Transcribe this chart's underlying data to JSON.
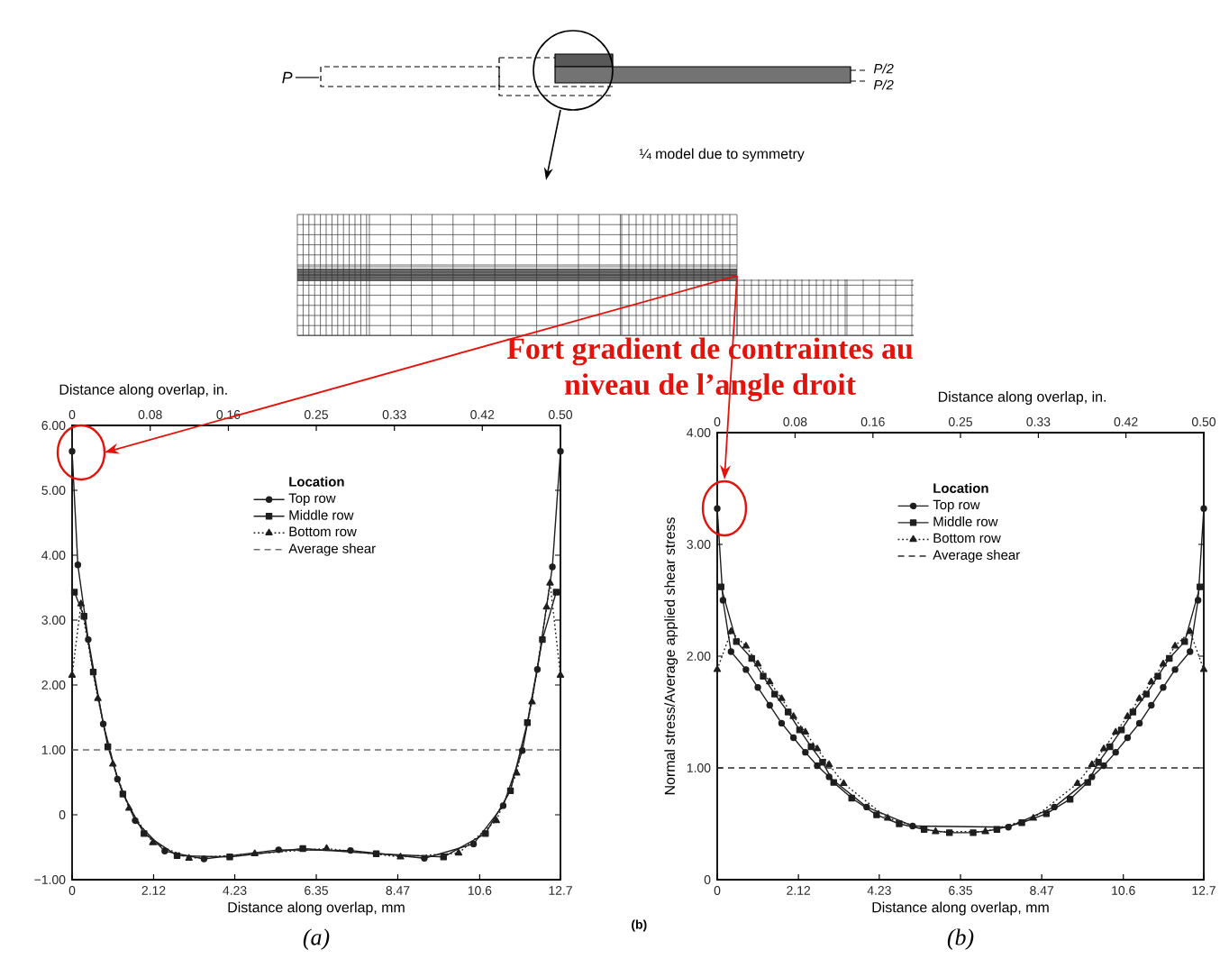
{
  "chart_data": [
    {
      "type": "other",
      "annotations": [
        "P",
        "P/2",
        "P/2",
        "¼ model due to symmetry",
        "Fort gradient de contraintes au niveau de l’angle droit"
      ]
    },
    {
      "type": "line",
      "xlabel": "Distance along overlap, mm",
      "x2label": "Distance along overlap, in.",
      "xlim": [
        0,
        12.7
      ],
      "xticks": [
        0,
        2.12,
        4.23,
        6.35,
        8.47,
        10.6,
        12.7
      ],
      "x2lim": [
        0,
        0.5
      ],
      "x2ticks": [
        0,
        0.08,
        0.16,
        0.25,
        0.33,
        0.42,
        {
          "value": 0.5,
          "label": "0.50"
        }
      ],
      "ylim": [
        -1,
        6
      ],
      "yticks": [
        {
          "value": -1,
          "label": "−1.00"
        },
        0,
        {
          "value": 1,
          "label": "1.00"
        },
        {
          "value": 2,
          "label": "2.00"
        },
        {
          "value": 3,
          "label": "3.00"
        },
        {
          "value": 4,
          "label": "4.00"
        },
        {
          "value": 5,
          "label": "5.00"
        },
        {
          "value": 6,
          "label": "6.00"
        }
      ],
      "legend": "top",
      "legend_title": "Location",
      "series": [
        {
          "name": "Top row",
          "color": "#1e1e1e",
          "marker": "circle",
          "line_style": "solid",
          "x": [
            0,
            0.15,
            0.42,
            0.81,
            1.18,
            1.64,
            2.41,
            3.43,
            5.37,
            7.24,
            9.16,
            10.44,
            11.21,
            11.71,
            12.1,
            12.49,
            12.7
          ],
          "values": [
            5.6,
            3.85,
            2.7,
            1.4,
            0.55,
            -0.09,
            -0.56,
            -0.68,
            -0.54,
            -0.55,
            -0.67,
            -0.45,
            0.14,
            0.99,
            2.24,
            3.82,
            5.6
          ]
        },
        {
          "name": "Middle row",
          "color": "#1e1e1e",
          "marker": "square",
          "line_style": "solid",
          "x": [
            0.06,
            0.31,
            0.55,
            0.93,
            1.32,
            1.87,
            2.73,
            4.1,
            6.0,
            7.91,
            9.66,
            10.75,
            11.4,
            11.84,
            12.23,
            12.59
          ],
          "values": [
            3.43,
            3.06,
            2.2,
            1.05,
            0.32,
            -0.29,
            -0.63,
            -0.65,
            -0.52,
            -0.6,
            -0.65,
            -0.29,
            0.37,
            1.42,
            2.7,
            3.43
          ]
        },
        {
          "name": "Bottom row",
          "color": "#1e1e1e",
          "marker": "triangle",
          "line_style": "dotted",
          "x": [
            0,
            0.23,
            0.67,
            1.06,
            1.48,
            2.1,
            3.04,
            4.75,
            6.62,
            8.54,
            10.05,
            11.03,
            11.56,
            11.96,
            12.34,
            12.43,
            12.7
          ],
          "values": [
            2.15,
            3.25,
            1.79,
            0.78,
            0.1,
            -0.43,
            -0.67,
            -0.6,
            -0.52,
            -0.65,
            -0.59,
            -0.09,
            0.64,
            1.74,
            3.2,
            3.57,
            2.15
          ]
        },
        {
          "name": "Average shear",
          "color": "#6e6e6e",
          "marker": "none",
          "line_style": "dashed",
          "x": [
            0,
            12.7
          ],
          "values": [
            1,
            1
          ]
        }
      ],
      "annotations": [
        "(a)"
      ]
    },
    {
      "type": "line",
      "xlabel": "Distance along overlap, mm",
      "x2label": "Distance along overlap, in.",
      "ylabel": "Normal stress/Average applied shear stress",
      "xlim": [
        0,
        12.7
      ],
      "xticks": [
        0,
        2.12,
        4.23,
        6.35,
        8.47,
        10.6,
        12.7
      ],
      "x2lim": [
        0,
        0.5
      ],
      "x2ticks": [
        0,
        0.08,
        0.16,
        0.25,
        0.33,
        0.42,
        {
          "value": 0.5,
          "label": "0.50"
        }
      ],
      "ylim": [
        0,
        4
      ],
      "yticks": [
        0,
        {
          "value": 1,
          "label": "1.00"
        },
        {
          "value": 2,
          "label": "2.00"
        },
        {
          "value": 3,
          "label": "3.00"
        },
        {
          "value": 4,
          "label": "4.00"
        }
      ],
      "legend": "top",
      "legend_title": "Location",
      "series": [
        {
          "name": "Top row",
          "color": "#1e1e1e",
          "marker": "circle",
          "line_style": "solid",
          "x": [
            0,
            0.15,
            0.36,
            0.75,
            1.06,
            1.37,
            1.68,
            1.99,
            2.3,
            2.61,
            2.92,
            3.9,
            5.1,
            7.6,
            8.8,
            9.78,
            10.09,
            10.4,
            10.71,
            11.02,
            11.33,
            11.64,
            11.95,
            12.34,
            12.55,
            12.7
          ],
          "values": [
            3.32,
            2.5,
            2.04,
            1.88,
            1.72,
            1.56,
            1.4,
            1.27,
            1.14,
            1.02,
            0.92,
            0.65,
            0.48,
            0.47,
            0.65,
            0.92,
            1.02,
            1.14,
            1.27,
            1.4,
            1.56,
            1.72,
            1.88,
            2.04,
            2.5,
            3.32
          ]
        },
        {
          "name": "Middle row",
          "color": "#1e1e1e",
          "marker": "square",
          "line_style": "solid",
          "x": [
            0.1,
            0.5,
            0.9,
            1.2,
            1.5,
            1.85,
            2.15,
            2.45,
            2.75,
            3.04,
            3.51,
            4.16,
            4.75,
            5.4,
            6.06,
            6.68,
            7.3,
            7.95,
            8.59,
            9.21,
            9.67,
            9.95,
            10.25,
            10.55,
            10.85,
            11.2,
            11.5,
            11.8,
            12.2,
            12.6
          ],
          "values": [
            2.62,
            2.13,
            1.98,
            1.82,
            1.66,
            1.5,
            1.34,
            1.19,
            1.05,
            0.87,
            0.73,
            0.58,
            0.5,
            0.45,
            0.42,
            0.42,
            0.45,
            0.51,
            0.59,
            0.72,
            0.87,
            1.05,
            1.19,
            1.34,
            1.5,
            1.66,
            1.82,
            1.98,
            2.13,
            2.62
          ]
        },
        {
          "name": "Bottom row",
          "color": "#1e1e1e",
          "marker": "triangle",
          "line_style": "dotted",
          "x": [
            0,
            0.36,
            0.75,
            1.06,
            1.37,
            1.68,
            1.99,
            2.3,
            2.61,
            2.92,
            3.3,
            4.45,
            5.7,
            7.0,
            8.25,
            9.4,
            9.78,
            10.09,
            10.4,
            10.71,
            11.02,
            11.33,
            11.64,
            11.95,
            12.34,
            12.7
          ],
          "values": [
            1.88,
            2.22,
            2.09,
            1.93,
            1.77,
            1.62,
            1.46,
            1.32,
            1.17,
            1.03,
            0.86,
            0.55,
            0.43,
            0.43,
            0.55,
            0.86,
            1.03,
            1.17,
            1.32,
            1.46,
            1.62,
            1.77,
            1.93,
            2.09,
            2.22,
            1.88
          ]
        },
        {
          "name": "Average shear",
          "color": "#2a2a2a",
          "marker": "none",
          "line_style": "dashed",
          "x": [
            0,
            12.7
          ],
          "values": [
            1,
            1
          ]
        }
      ],
      "annotations": [
        "(b)",
        "(b)"
      ]
    }
  ]
}
